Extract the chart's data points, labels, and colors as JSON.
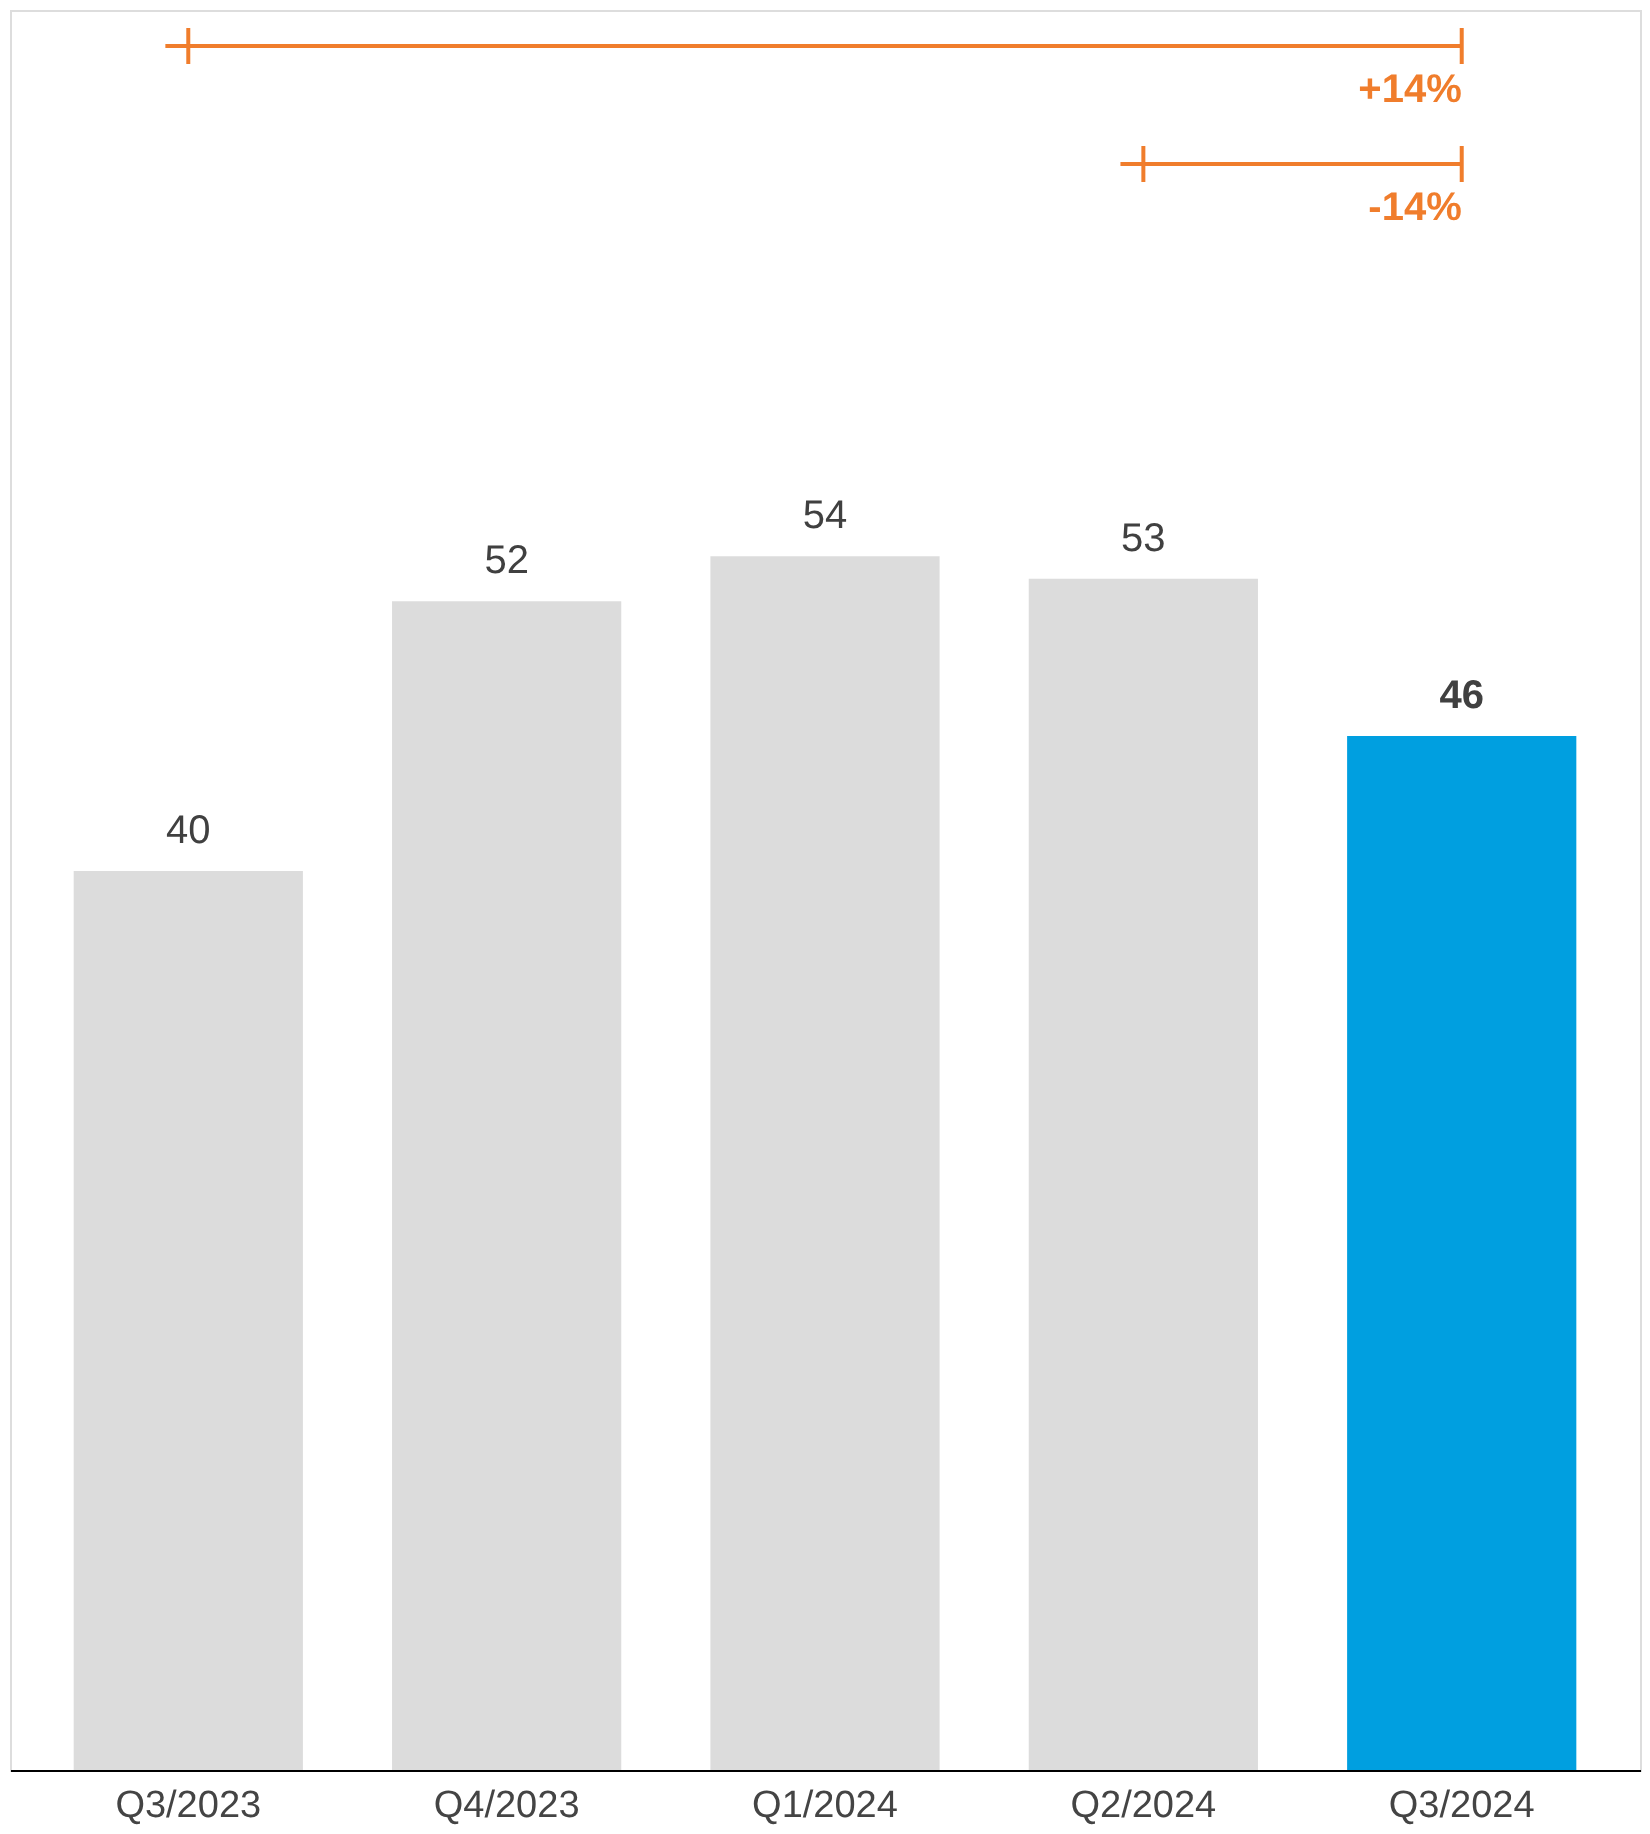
{
  "chart_data": {
    "type": "bar",
    "categories": [
      "Q3/2023",
      "Q4/2023",
      "Q1/2024",
      "Q2/2024",
      "Q3/2024"
    ],
    "values": [
      40,
      52,
      54,
      53,
      46
    ],
    "colors": [
      "#dcdcdc",
      "#dcdcdc",
      "#dcdcdc",
      "#dcdcdc",
      "#009fe0"
    ],
    "data_labels": true,
    "annotations": [
      "+14%",
      "-14%"
    ]
  }
}
